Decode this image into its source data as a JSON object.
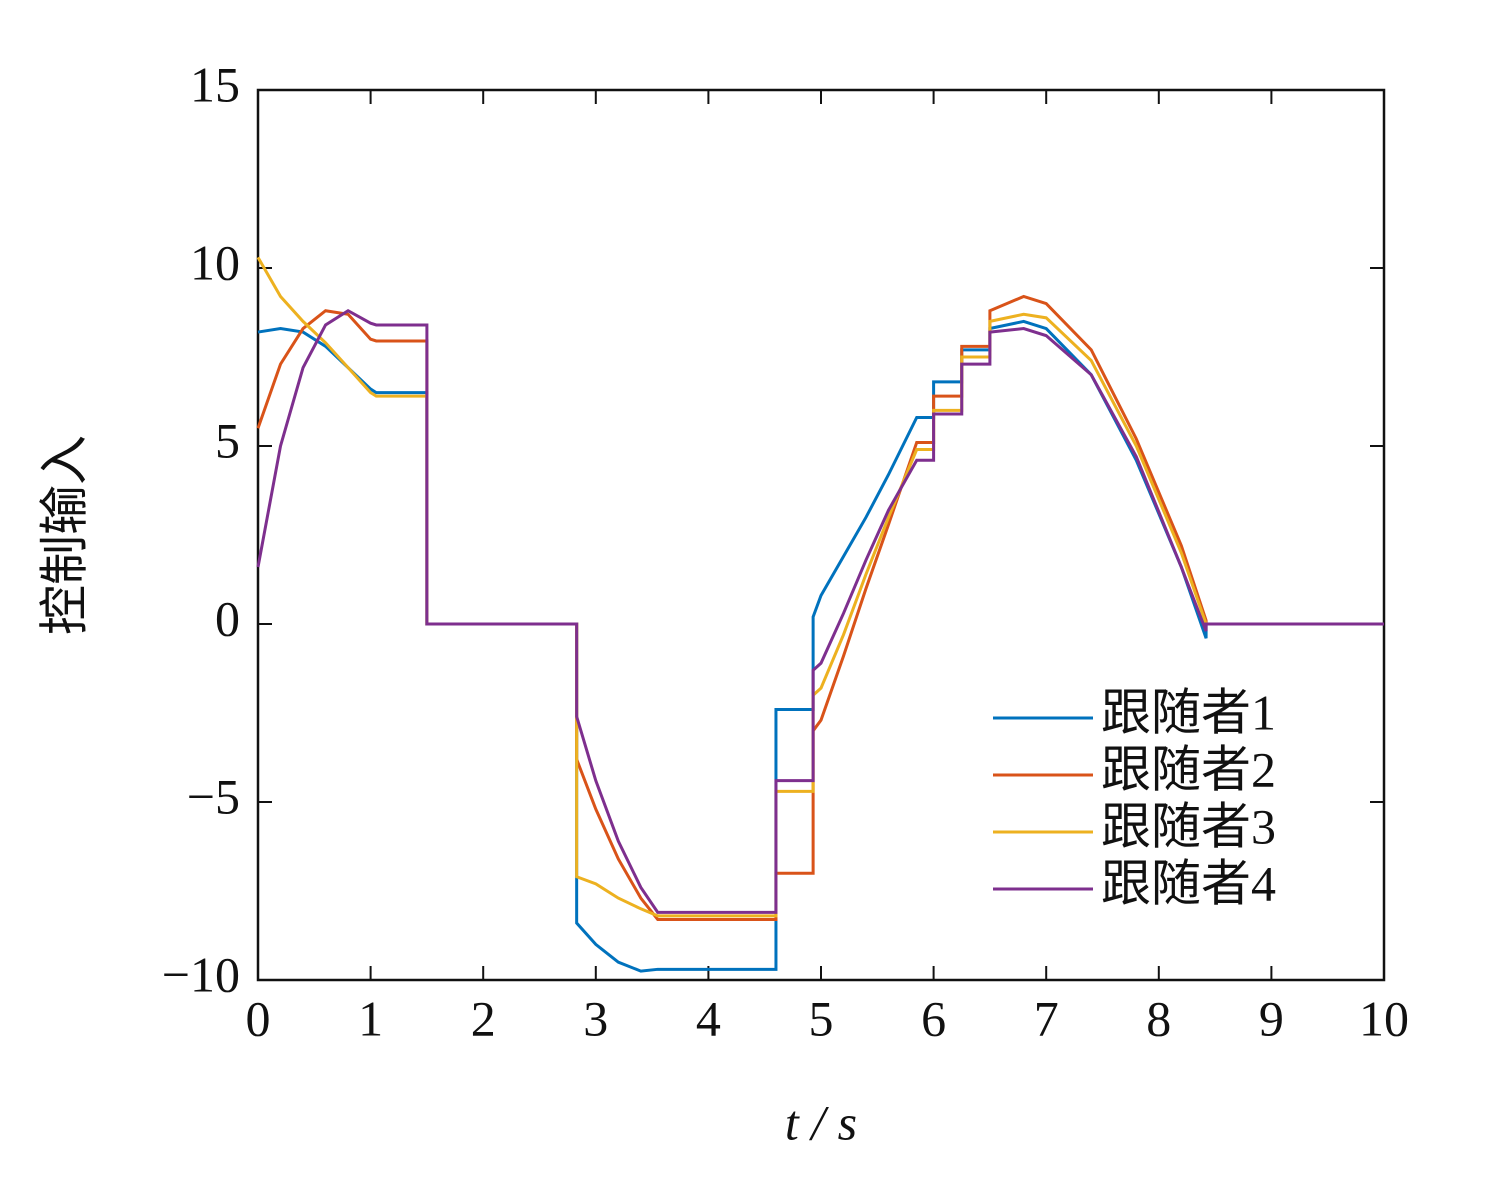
{
  "chart_data": {
    "type": "line",
    "x_label": "t / s",
    "y_label": "控制输入",
    "x": [
      0,
      0.2,
      0.4,
      0.6,
      0.8,
      1.0,
      1.05,
      1.5,
      1.5,
      2.83,
      2.83,
      3.0,
      3.2,
      3.4,
      3.55,
      4.0,
      4.6,
      4.6,
      4.93,
      4.93,
      5.0,
      5.2,
      5.4,
      5.6,
      5.85,
      6.0,
      6.0,
      6.25,
      6.25,
      6.5,
      6.5,
      6.8,
      7.0,
      7.4,
      7.8,
      8.2,
      8.42,
      8.42,
      10
    ],
    "series": [
      {
        "name": "跟随者1",
        "color": "#0072bd",
        "values": [
          8.2,
          8.3,
          8.2,
          7.8,
          7.2,
          6.6,
          6.5,
          6.5,
          0,
          0,
          -8.4,
          -9.0,
          -9.5,
          -9.75,
          -9.7,
          -9.7,
          -9.7,
          -2.4,
          -2.4,
          0.2,
          0.8,
          1.9,
          3.0,
          4.2,
          5.8,
          5.8,
          6.8,
          6.8,
          7.7,
          7.7,
          8.3,
          8.5,
          8.3,
          7.0,
          4.6,
          1.6,
          -0.4,
          0,
          0
        ]
      },
      {
        "name": "跟随者2",
        "color": "#d95319",
        "values": [
          5.5,
          7.3,
          8.3,
          8.8,
          8.7,
          8.0,
          7.95,
          7.95,
          0,
          0,
          -3.8,
          -5.2,
          -6.6,
          -7.7,
          -8.3,
          -8.3,
          -8.3,
          -7.0,
          -7.0,
          -3.0,
          -2.7,
          -0.9,
          1.0,
          2.8,
          5.1,
          5.1,
          6.4,
          6.4,
          7.8,
          7.8,
          8.8,
          9.2,
          9.0,
          7.7,
          5.2,
          2.2,
          0.1,
          0,
          0
        ]
      },
      {
        "name": "跟随者3",
        "color": "#edb120",
        "values": [
          10.3,
          9.2,
          8.5,
          7.9,
          7.2,
          6.5,
          6.4,
          6.4,
          0,
          0,
          -7.1,
          -7.3,
          -7.7,
          -8.0,
          -8.2,
          -8.2,
          -8.2,
          -4.7,
          -4.7,
          -2.0,
          -1.8,
          -0.3,
          1.4,
          3.0,
          4.9,
          4.9,
          6.0,
          6.0,
          7.5,
          7.5,
          8.5,
          8.7,
          8.6,
          7.4,
          5.0,
          2.0,
          0,
          0,
          0
        ]
      },
      {
        "name": "跟随者4",
        "color": "#7e2f8e",
        "values": [
          1.6,
          5.0,
          7.2,
          8.4,
          8.8,
          8.45,
          8.4,
          8.4,
          0,
          0,
          -2.6,
          -4.4,
          -6.1,
          -7.4,
          -8.1,
          -8.1,
          -8.1,
          -4.4,
          -4.4,
          -1.3,
          -1.1,
          0.3,
          1.8,
          3.2,
          4.6,
          4.6,
          5.9,
          5.9,
          7.3,
          7.3,
          8.2,
          8.3,
          8.1,
          7.0,
          4.7,
          1.6,
          -0.2,
          0,
          0
        ]
      }
    ],
    "xlim": [
      0,
      10
    ],
    "xticks": [
      0,
      1,
      2,
      3,
      4,
      5,
      6,
      7,
      8,
      9,
      10
    ],
    "ylim": [
      -10,
      15
    ],
    "yticks": [
      {
        "value": -10,
        "label": "−10"
      },
      {
        "value": -5,
        "label": "−5"
      },
      0,
      5,
      10,
      15
    ],
    "grid": false,
    "legend": "lower right"
  }
}
